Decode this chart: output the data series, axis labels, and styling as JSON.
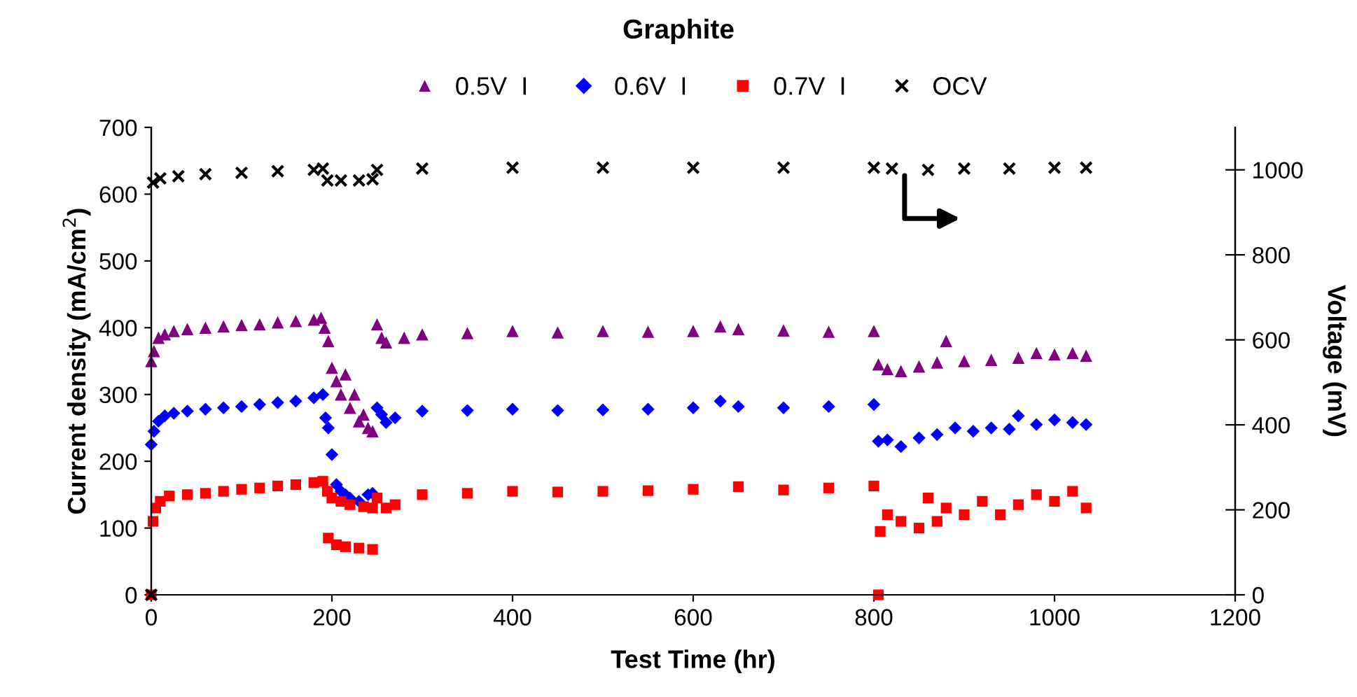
{
  "chart_data": {
    "type": "scatter",
    "title": "Graphite",
    "xlabel": "Test Time (hr)",
    "ylabel": "Current density (mA/cm$^{2}$)",
    "y2label": "Voltage (mV)",
    "xlim": [
      0,
      1200
    ],
    "xticks": [
      0,
      200,
      400,
      600,
      800,
      1000,
      1200
    ],
    "ylim": [
      0,
      700
    ],
    "yticks": [
      0,
      100,
      200,
      300,
      400,
      500,
      600,
      700
    ],
    "y2lim": [
      0,
      1100
    ],
    "y2ticks": [
      0,
      200,
      400,
      600,
      800,
      1000
    ],
    "legend": "top",
    "grid": false,
    "series": [
      {
        "name": "0.5V  I",
        "color": "#800080",
        "marker": "triangle",
        "x": [
          0,
          3,
          8,
          15,
          25,
          40,
          60,
          80,
          100,
          120,
          140,
          160,
          180,
          188,
          192,
          196,
          200,
          205,
          210,
          215,
          220,
          225,
          230,
          235,
          240,
          245,
          250,
          255,
          260,
          280,
          300,
          350,
          400,
          450,
          500,
          550,
          600,
          630,
          650,
          700,
          750,
          800,
          805,
          815,
          830,
          850,
          870,
          880,
          900,
          930,
          960,
          980,
          1000,
          1020,
          1035
        ],
        "values": [
          350,
          365,
          385,
          390,
          395,
          398,
          400,
          402,
          404,
          405,
          408,
          410,
          412,
          415,
          400,
          380,
          340,
          320,
          300,
          330,
          280,
          300,
          260,
          270,
          250,
          245,
          405,
          385,
          378,
          385,
          390,
          392,
          395,
          393,
          395,
          394,
          395,
          402,
          398,
          396,
          394,
          395,
          345,
          338,
          335,
          342,
          348,
          380,
          350,
          352,
          355,
          362,
          360,
          362,
          358
        ]
      },
      {
        "name": "0.6V  I",
        "color": "#0000ff",
        "marker": "diamond",
        "x": [
          0,
          3,
          8,
          15,
          25,
          40,
          60,
          80,
          100,
          120,
          140,
          160,
          180,
          190,
          193,
          196,
          200,
          205,
          210,
          215,
          220,
          230,
          240,
          245,
          250,
          255,
          260,
          270,
          300,
          350,
          400,
          450,
          500,
          550,
          600,
          630,
          650,
          700,
          750,
          800,
          805,
          815,
          830,
          850,
          870,
          890,
          910,
          930,
          950,
          960,
          980,
          1000,
          1020,
          1035
        ],
        "values": [
          225,
          245,
          260,
          268,
          272,
          275,
          278,
          280,
          282,
          285,
          288,
          290,
          295,
          300,
          265,
          250,
          210,
          165,
          155,
          150,
          145,
          140,
          150,
          152,
          280,
          270,
          258,
          265,
          275,
          276,
          278,
          276,
          277,
          278,
          280,
          290,
          282,
          280,
          282,
          285,
          230,
          232,
          222,
          235,
          240,
          250,
          245,
          250,
          248,
          268,
          255,
          262,
          258,
          255
        ]
      },
      {
        "name": "0.7V  I",
        "color": "#ff0000",
        "marker": "square",
        "x": [
          0,
          2,
          5,
          10,
          20,
          40,
          60,
          80,
          100,
          120,
          140,
          160,
          180,
          190,
          195,
          200,
          210,
          220,
          235,
          245,
          196,
          205,
          215,
          230,
          245,
          250,
          260,
          270,
          300,
          350,
          400,
          450,
          500,
          550,
          600,
          650,
          700,
          750,
          800,
          805,
          807,
          815,
          830,
          850,
          860,
          870,
          880,
          900,
          920,
          940,
          960,
          980,
          1000,
          1020,
          1035
        ],
        "values": [
          0,
          110,
          130,
          140,
          148,
          150,
          152,
          155,
          158,
          160,
          163,
          165,
          168,
          170,
          155,
          145,
          140,
          135,
          132,
          130,
          85,
          75,
          72,
          70,
          68,
          145,
          130,
          135,
          150,
          152,
          155,
          154,
          155,
          156,
          158,
          162,
          157,
          160,
          163,
          0,
          95,
          120,
          110,
          100,
          145,
          110,
          130,
          120,
          140,
          120,
          135,
          150,
          140,
          155,
          130
        ]
      },
      {
        "name": "OCV",
        "color": "#000000",
        "marker": "cross",
        "axis": "y2",
        "x": [
          0,
          2,
          10,
          30,
          60,
          100,
          140,
          180,
          190,
          195,
          210,
          230,
          245,
          250,
          300,
          400,
          500,
          600,
          700,
          800,
          820,
          860,
          900,
          950,
          1000,
          1035
        ],
        "values": [
          0,
          970,
          980,
          985,
          990,
          993,
          997,
          1000,
          1003,
          975,
          975,
          975,
          978,
          1000,
          1003,
          1005,
          1005,
          1005,
          1005,
          1005,
          1003,
          1000,
          1003,
          1003,
          1005,
          1005
        ]
      }
    ]
  }
}
